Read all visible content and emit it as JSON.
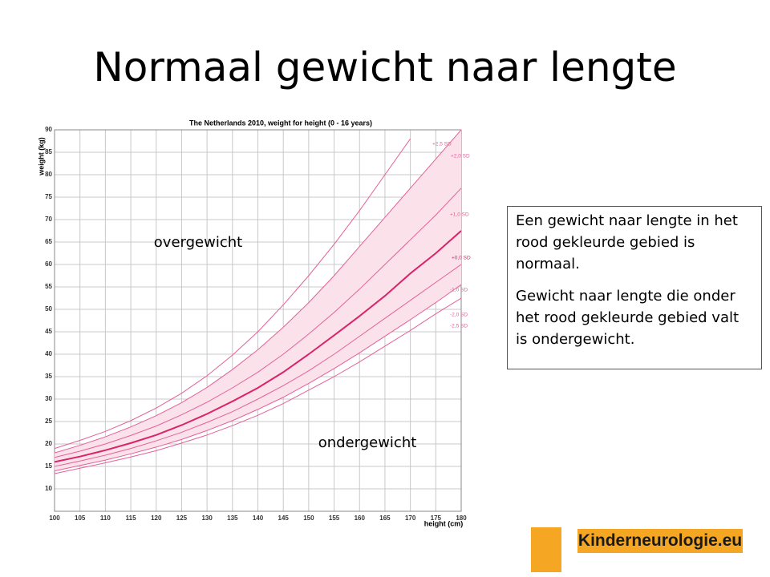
{
  "slide_title": "Normaal gewicht naar lengte",
  "chart_data": {
    "type": "line",
    "title": "The Netherlands 2010, weight for height (0 - 16 years)",
    "xlabel": "height (cm)",
    "ylabel": "weight (kg)",
    "x": [
      100,
      105,
      110,
      115,
      120,
      125,
      130,
      135,
      140,
      145,
      150,
      155,
      160,
      165,
      170,
      175,
      180
    ],
    "xlim": [
      100,
      180
    ],
    "ylim": [
      5,
      90
    ],
    "xticks": [
      100,
      105,
      110,
      115,
      120,
      125,
      130,
      135,
      140,
      145,
      150,
      155,
      160,
      165,
      170,
      175,
      180
    ],
    "yticks": [
      10,
      15,
      20,
      25,
      30,
      35,
      40,
      45,
      50,
      55,
      60,
      65,
      70,
      75,
      80,
      85,
      90
    ],
    "grid": true,
    "band_color": "#fbe1ea",
    "series": [
      {
        "name": "+2,5 SD",
        "color": "#e4609a",
        "values": [
          19,
          20.8,
          22.8,
          25.2,
          28,
          31.3,
          35.2,
          39.8,
          45,
          51,
          57.5,
          64.5,
          72,
          80,
          88,
          null,
          null
        ]
      },
      {
        "name": "+2,0 SD",
        "color": "#e4609a",
        "values": [
          18,
          19.7,
          21.6,
          23.8,
          26.3,
          29.2,
          32.6,
          36.6,
          41,
          46,
          51.5,
          57.5,
          64,
          70.5,
          77,
          83.5,
          90
        ]
      },
      {
        "name": "+1,0 SD",
        "color": "#e4609a",
        "values": [
          17,
          18.4,
          20,
          21.9,
          24,
          26.5,
          29.3,
          32.5,
          36,
          40,
          44.5,
          49.3,
          54.5,
          60,
          65.5,
          71,
          77
        ]
      },
      {
        "name": "+0,0 SD",
        "color": "#d8246a",
        "values": [
          16,
          17.2,
          18.6,
          20.2,
          22,
          24.2,
          26.7,
          29.5,
          32.5,
          36,
          40,
          44.2,
          48.5,
          53,
          58,
          62.5,
          67.5
        ]
      },
      {
        "name": "-1,0 SD",
        "color": "#e4609a",
        "values": [
          15,
          16.2,
          17.5,
          19,
          20.7,
          22.6,
          24.8,
          27.2,
          30,
          33,
          36.3,
          40,
          44,
          48,
          52,
          56,
          60
        ]
      },
      {
        "name": "-2,0 SD",
        "color": "#e4609a",
        "values": [
          14,
          15.2,
          16.4,
          17.8,
          19.3,
          21,
          23,
          25.2,
          27.7,
          30.4,
          33.5,
          36.8,
          40.3,
          44,
          47.7,
          51.5,
          55.5
        ]
      },
      {
        "name": "-2,5 SD",
        "color": "#e4609a",
        "values": [
          13.4,
          14.6,
          15.8,
          17.1,
          18.5,
          20.2,
          22,
          24.1,
          26.4,
          29,
          32,
          35,
          38.3,
          41.8,
          45.3,
          49,
          52.5
        ]
      }
    ],
    "annotations": [
      "overgewicht",
      "ondergewicht"
    ]
  },
  "text_box": {
    "paragraphs": [
      "Een gewicht naar lengte in het rood gekleurde gebied is normaal.",
      "Gewicht naar lengte die onder het rood gekleurde gebied valt is ondergewicht."
    ]
  },
  "logo": {
    "text": "Kinderneurologie.eu"
  }
}
